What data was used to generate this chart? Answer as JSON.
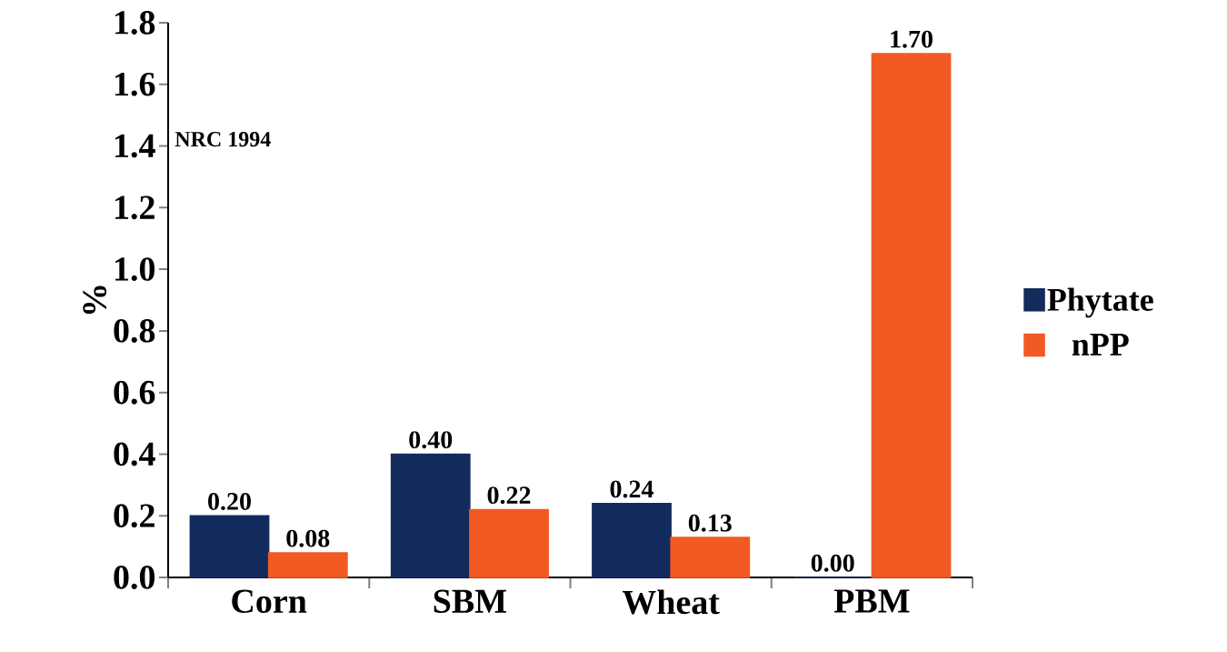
{
  "chart_data": {
    "type": "bar",
    "ylabel": "%",
    "categories": [
      "Corn",
      "SBM",
      "Wheat",
      "PBM"
    ],
    "series": [
      {
        "name": "Phytate",
        "color": "#132b5c",
        "values": [
          0.2,
          0.4,
          0.24,
          0.0
        ],
        "value_labels": [
          "0.20",
          "0.40",
          "0.24",
          "0.00"
        ]
      },
      {
        "name": "nPP",
        "color": "#f15a22",
        "values": [
          0.08,
          0.22,
          0.13,
          1.7
        ],
        "value_labels": [
          "0.08",
          "0.22",
          "0.13",
          "1.70"
        ]
      }
    ],
    "ylim": [
      0,
      1.8
    ],
    "yticks": [
      {
        "value": 0,
        "label": "0.0"
      },
      {
        "value": 0.2,
        "label": "0.2"
      },
      {
        "value": 0.4,
        "label": "0.4"
      },
      {
        "value": 0.6,
        "label": "0.6"
      },
      {
        "value": 0.8,
        "label": "0.8"
      },
      {
        "value": 1.0,
        "label": "1.0"
      },
      {
        "value": 1.2,
        "label": "1.2"
      },
      {
        "value": 1.4,
        "label": "1.4"
      },
      {
        "value": 1.6,
        "label": "1.6"
      },
      {
        "value": 1.8,
        "label": "1.8"
      }
    ],
    "annotations": [
      "NRC 1994"
    ],
    "grid": false,
    "legend": "right"
  }
}
